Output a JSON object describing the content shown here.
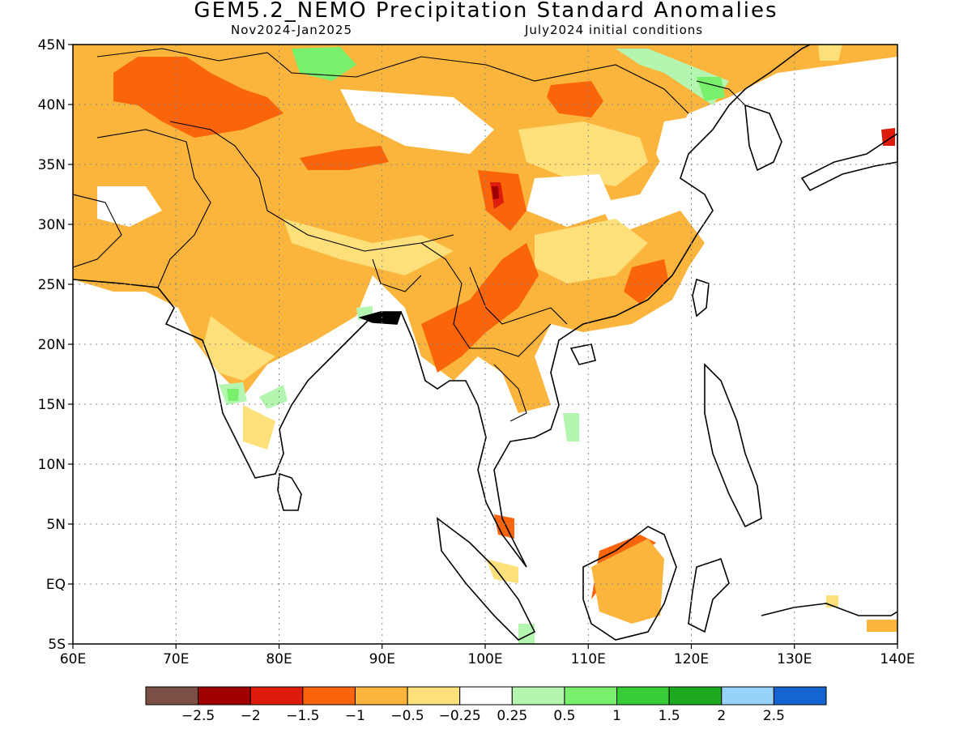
{
  "title": "GEM5.2_NEMO Precipitation Standard Anomalies",
  "subtitle_left": "Nov2024-Jan2025",
  "subtitle_right": "July2024 initial conditions",
  "map": {
    "lon_range": [
      60,
      140
    ],
    "lat_range": [
      -5,
      45
    ],
    "x_ticks": [
      "60E",
      "70E",
      "80E",
      "90E",
      "100E",
      "110E",
      "120E",
      "130E",
      "140E"
    ],
    "y_ticks": [
      "5S",
      "EQ",
      "5N",
      "10N",
      "15N",
      "20N",
      "25N",
      "30N",
      "35N",
      "40N",
      "45N"
    ],
    "grid": "dotted",
    "region": "South and East Asia"
  },
  "legend": {
    "colors": [
      "#7a5044",
      "#a00000",
      "#dd1c0c",
      "#fa640a",
      "#fbb53c",
      "#fde07a",
      "#ffffff",
      "#b4f6b0",
      "#78f06c",
      "#35cc35",
      "#1eaa1e",
      "#96d2fa",
      "#1464d2"
    ],
    "labels": [
      "−2.5",
      "−2",
      "−1.5",
      "−1",
      "−0.5",
      "−0.25",
      "0.25",
      "0.5",
      "1",
      "1.5",
      "2",
      "2.5"
    ]
  }
}
